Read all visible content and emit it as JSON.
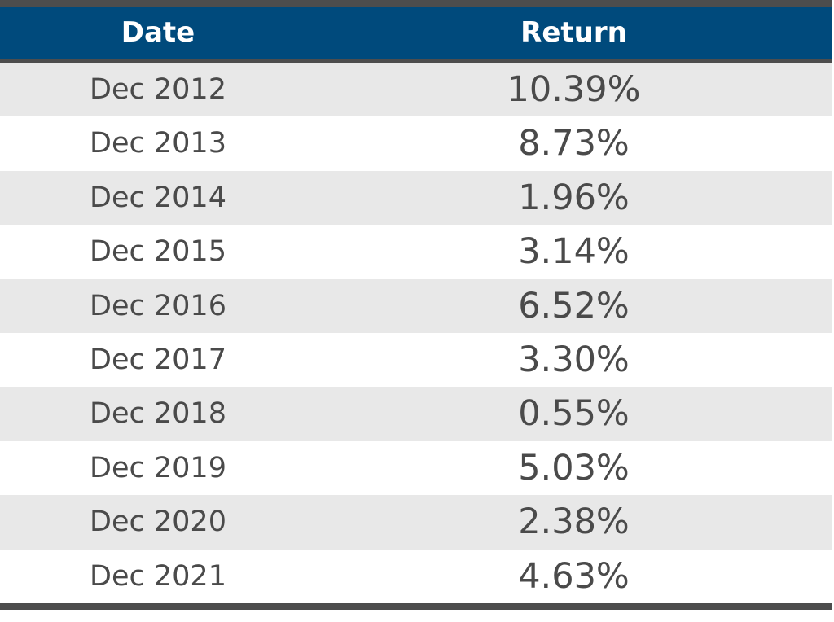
{
  "chart_data": {
    "type": "table",
    "columns": [
      "Date",
      "Return"
    ],
    "rows": [
      {
        "date": "Dec 2012",
        "return": "10.39%"
      },
      {
        "date": "Dec 2013",
        "return": "8.73%"
      },
      {
        "date": "Dec 2014",
        "return": "1.96%"
      },
      {
        "date": "Dec 2015",
        "return": "3.14%"
      },
      {
        "date": "Dec 2016",
        "return": "6.52%"
      },
      {
        "date": "Dec 2017",
        "return": "3.30%"
      },
      {
        "date": "Dec 2018",
        "return": "0.55%"
      },
      {
        "date": "Dec 2019",
        "return": "5.03%"
      },
      {
        "date": "Dec 2020",
        "return": "2.38%"
      },
      {
        "date": "Dec 2021",
        "return": "4.63%"
      }
    ]
  },
  "colors": {
    "header_bg": "#004a7c",
    "header_text": "#ffffff",
    "rule": "#4d4d4d",
    "shaded_row": "#e8e8e8",
    "body_text": "#4a4a4a"
  }
}
